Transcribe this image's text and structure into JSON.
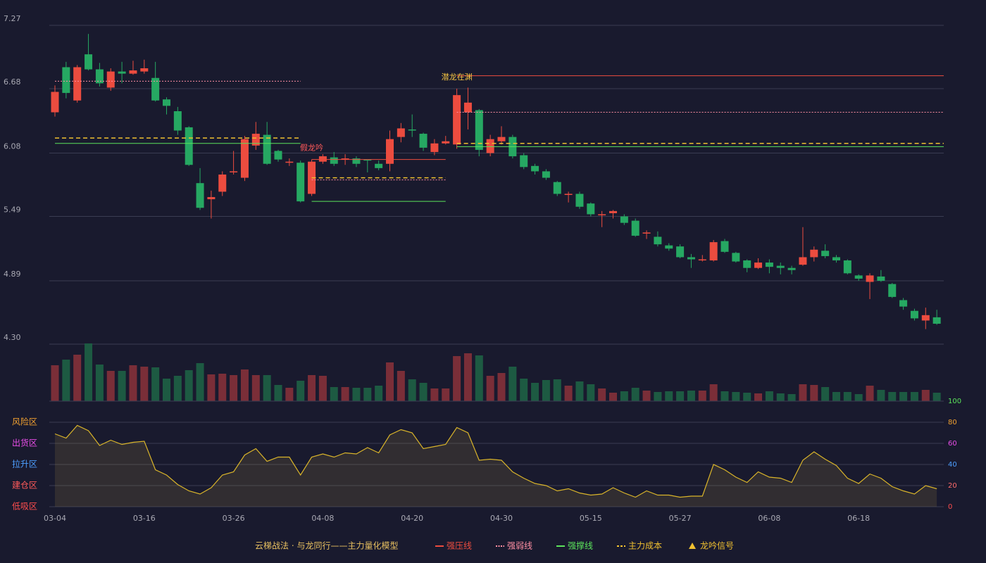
{
  "chart_data": [
    {
      "type": "candlestick",
      "categories": [
        "03-04",
        null,
        null,
        null,
        null,
        null,
        null,
        null,
        "03-16",
        null,
        null,
        null,
        null,
        null,
        null,
        null,
        "03-26",
        null,
        null,
        null,
        null,
        null,
        null,
        null,
        "04-08",
        null,
        null,
        null,
        null,
        null,
        null,
        null,
        "04-20",
        null,
        null,
        null,
        null,
        null,
        null,
        null,
        "04-30",
        null,
        null,
        null,
        null,
        null,
        null,
        null,
        "05-15",
        null,
        null,
        null,
        null,
        null,
        null,
        null,
        "05-27",
        null,
        null,
        null,
        null,
        null,
        null,
        null,
        "06-08",
        null,
        null,
        null,
        null,
        null,
        null,
        null,
        "06-18",
        null,
        null,
        null,
        null,
        null,
        null,
        null
      ],
      "open": [
        6.46,
        6.88,
        6.57,
        7.0,
        6.86,
        6.69,
        6.84,
        6.82,
        6.84,
        6.78,
        6.58,
        6.47,
        6.32,
        5.8,
        5.65,
        5.72,
        5.9,
        5.85,
        6.15,
        6.25,
        6.1,
        5.99,
        5.99,
        5.7,
        6.0,
        6.04,
        6.02,
        6.03,
        6.02,
        5.98,
        5.98,
        6.23,
        6.3,
        6.26,
        6.09,
        6.17,
        6.16,
        6.46,
        6.48,
        6.08,
        6.19,
        6.23,
        6.06,
        5.96,
        5.91,
        5.81,
        5.69,
        5.7,
        5.61,
        5.5,
        5.52,
        5.49,
        5.45,
        5.33,
        5.3,
        5.22,
        5.21,
        5.11,
        5.08,
        5.08,
        5.26,
        5.15,
        5.08,
        5.01,
        5.06,
        5.03,
        5.01,
        5.04,
        5.11,
        5.17,
        5.11,
        5.08,
        4.94,
        4.88,
        4.93,
        4.86,
        4.71,
        4.61,
        4.52,
        4.55
      ],
      "high": [
        6.71,
        6.93,
        6.9,
        7.19,
        6.92,
        6.87,
        6.93,
        6.94,
        6.95,
        6.93,
        6.6,
        6.51,
        6.33,
        5.94,
        5.73,
        5.91,
        6.1,
        6.24,
        6.37,
        6.37,
        6.11,
        6.03,
        6.01,
        6.02,
        6.07,
        6.09,
        6.07,
        6.05,
        6.02,
        6.01,
        6.29,
        6.36,
        6.44,
        6.27,
        6.21,
        6.24,
        6.68,
        6.69,
        6.49,
        6.25,
        6.33,
        6.25,
        6.08,
        5.98,
        5.93,
        5.82,
        5.72,
        5.72,
        5.62,
        5.54,
        5.55,
        5.51,
        5.47,
        5.36,
        5.35,
        5.24,
        5.23,
        5.14,
        5.13,
        5.27,
        5.28,
        5.16,
        5.09,
        5.1,
        5.09,
        5.06,
        5.03,
        5.39,
        5.21,
        5.23,
        5.13,
        5.09,
        4.95,
        4.96,
        4.99,
        4.87,
        4.73,
        4.63,
        4.64,
        4.62
      ],
      "low": [
        6.42,
        6.59,
        6.55,
        6.85,
        6.7,
        6.66,
        6.73,
        6.81,
        6.82,
        6.56,
        6.44,
        6.25,
        5.96,
        5.55,
        5.47,
        5.68,
        5.88,
        5.82,
        6.11,
        5.97,
        6.0,
        5.96,
        5.62,
        5.68,
        5.98,
        5.96,
        5.97,
        5.95,
        5.9,
        5.92,
        5.91,
        6.18,
        6.23,
        6.1,
        6.06,
        6.16,
        6.12,
        6.3,
        6.05,
        6.05,
        6.16,
        6.03,
        5.93,
        5.88,
        5.83,
        5.68,
        5.62,
        5.56,
        5.49,
        5.39,
        5.47,
        5.41,
        5.3,
        5.28,
        5.21,
        5.17,
        5.1,
        5.01,
        5.07,
        5.07,
        5.15,
        5.06,
        4.97,
        5.0,
        4.96,
        4.95,
        4.95,
        5.03,
        5.07,
        5.1,
        5.06,
        4.95,
        4.89,
        4.72,
        4.88,
        4.73,
        4.62,
        4.52,
        4.44,
        4.48
      ],
      "close": [
        6.65,
        6.64,
        6.88,
        6.86,
        6.73,
        6.84,
        6.82,
        6.85,
        6.87,
        6.57,
        6.52,
        6.29,
        5.97,
        5.57,
        5.67,
        5.88,
        5.91,
        6.21,
        6.26,
        5.98,
        6.02,
        6.0,
        5.63,
        6.0,
        6.05,
        5.98,
        6.03,
        5.98,
        6.01,
        5.94,
        6.21,
        6.31,
        6.29,
        6.13,
        6.17,
        6.19,
        6.62,
        6.55,
        6.11,
        6.21,
        6.23,
        6.05,
        5.95,
        5.91,
        5.85,
        5.7,
        5.7,
        5.58,
        5.51,
        5.51,
        5.54,
        5.43,
        5.31,
        5.34,
        5.23,
        5.19,
        5.11,
        5.09,
        5.09,
        5.25,
        5.16,
        5.07,
        5.01,
        5.06,
        5.02,
        5.01,
        4.99,
        5.11,
        5.18,
        5.12,
        5.08,
        4.96,
        4.91,
        4.94,
        4.89,
        4.74,
        4.65,
        4.54,
        4.57,
        4.49
      ],
      "up_color": "#ec4c3f",
      "down_color": "#26a862",
      "ylim": [
        4.3,
        7.27
      ],
      "yticks": [
        {
          "value": 4.3,
          "label": "4.30"
        },
        4.89,
        5.49,
        6.08,
        6.68,
        7.27
      ],
      "grid": true,
      "levels": [
        {
          "legend_item": 1,
          "value": 6.75,
          "start": 0,
          "end": 22
        },
        {
          "legend_item": 3,
          "value": 6.22,
          "start": 0,
          "end": 22
        },
        {
          "legend_item": 2,
          "value": 6.17,
          "start": 0,
          "end": 22
        },
        {
          "legend_item": 0,
          "value": 6.02,
          "start": 23,
          "end": 35
        },
        {
          "legend_item": 3,
          "value": 5.85,
          "start": 23,
          "end": 35
        },
        {
          "legend_item": 1,
          "value": 5.83,
          "start": 23,
          "end": 35
        },
        {
          "legend_item": 2,
          "value": 5.63,
          "start": 23,
          "end": 35
        },
        {
          "legend_item": 0,
          "value": 6.8,
          "start": 36,
          "end": 79
        },
        {
          "legend_item": 1,
          "value": 6.46,
          "start": 36,
          "end": 79
        },
        {
          "legend_item": 3,
          "value": 6.17,
          "start": 36,
          "end": 79
        },
        {
          "legend_item": 2,
          "value": 6.14,
          "start": 36,
          "end": 79
        }
      ],
      "annotations": [
        {
          "text": "假龙吟",
          "index": 23,
          "color": "#ff5a5a"
        },
        {
          "text": "潜龙在渊",
          "index": 36,
          "color": "#f5c542"
        }
      ],
      "legend": {
        "title": "云梯战法 · 与龙同行——主力量化模型",
        "title_color": "#e8c060",
        "items": [
          {
            "name": "强压线",
            "color": "#ec4c3f",
            "style": "solid"
          },
          {
            "name": "强弱线",
            "color": "#ff8fa3",
            "style": "dotted"
          },
          {
            "name": "强撑线",
            "color": "#5be35b",
            "style": "solid"
          },
          {
            "name": "主力成本",
            "color": "#f0c030",
            "style": "dashed"
          },
          {
            "name": "龙吟信号",
            "color": "#f0c030",
            "style": "triangle"
          }
        ]
      }
    },
    {
      "type": "bar",
      "values": [
        51,
        59,
        66,
        82,
        52,
        43,
        43,
        51,
        49,
        48,
        32,
        36,
        44,
        54,
        38,
        39,
        37,
        45,
        37,
        37,
        23,
        19,
        29,
        37,
        36,
        20,
        20,
        19,
        19,
        22,
        55,
        43,
        31,
        26,
        18,
        18,
        64,
        68,
        65,
        36,
        40,
        49,
        32,
        26,
        30,
        31,
        22,
        28,
        24,
        18,
        12,
        14,
        19,
        15,
        13,
        14,
        14,
        15,
        15,
        24,
        14,
        13,
        12,
        11,
        14,
        11,
        10,
        24,
        23,
        20,
        13,
        13,
        10,
        22,
        16,
        13,
        13,
        13,
        16,
        12
      ],
      "up_color": "#7a2e38",
      "down_color": "#1d5a42"
    },
    {
      "type": "line",
      "values": [
        69,
        65,
        77,
        72,
        58,
        63,
        59,
        61,
        62,
        35,
        30,
        21,
        15,
        12,
        18,
        30,
        33,
        49,
        55,
        43,
        47,
        47,
        30,
        47,
        50,
        47,
        51,
        50,
        56,
        51,
        68,
        73,
        70,
        55,
        57,
        59,
        75,
        70,
        44,
        45,
        44,
        33,
        27,
        22,
        20,
        15,
        17,
        13,
        11,
        12,
        18,
        13,
        9,
        15,
        11,
        11,
        9,
        10,
        10,
        40,
        35,
        28,
        23,
        33,
        28,
        27,
        23,
        44,
        52,
        45,
        39,
        27,
        22,
        31,
        27,
        19,
        15,
        12,
        20,
        17
      ],
      "color": "#d9b42a",
      "ylim": [
        0,
        100
      ],
      "yticks": [
        0,
        20,
        40,
        60,
        80,
        100
      ],
      "ytick_colors": [
        "#ff4d4d",
        "#ff6b6b",
        "#4d9fff",
        "#e84de8",
        "#f0a030",
        "#5be35b"
      ],
      "zones": [
        {
          "label": "风险区",
          "value": 80,
          "color": "#f0a030"
        },
        {
          "label": "出货区",
          "value": 60,
          "color": "#e84de8"
        },
        {
          "label": "拉升区",
          "value": 40,
          "color": "#4d9fff"
        },
        {
          "label": "建仓区",
          "value": 20,
          "color": "#ff5a5a"
        },
        {
          "label": "低吸区",
          "value": 0,
          "color": "#ff4d4d"
        }
      ]
    }
  ]
}
